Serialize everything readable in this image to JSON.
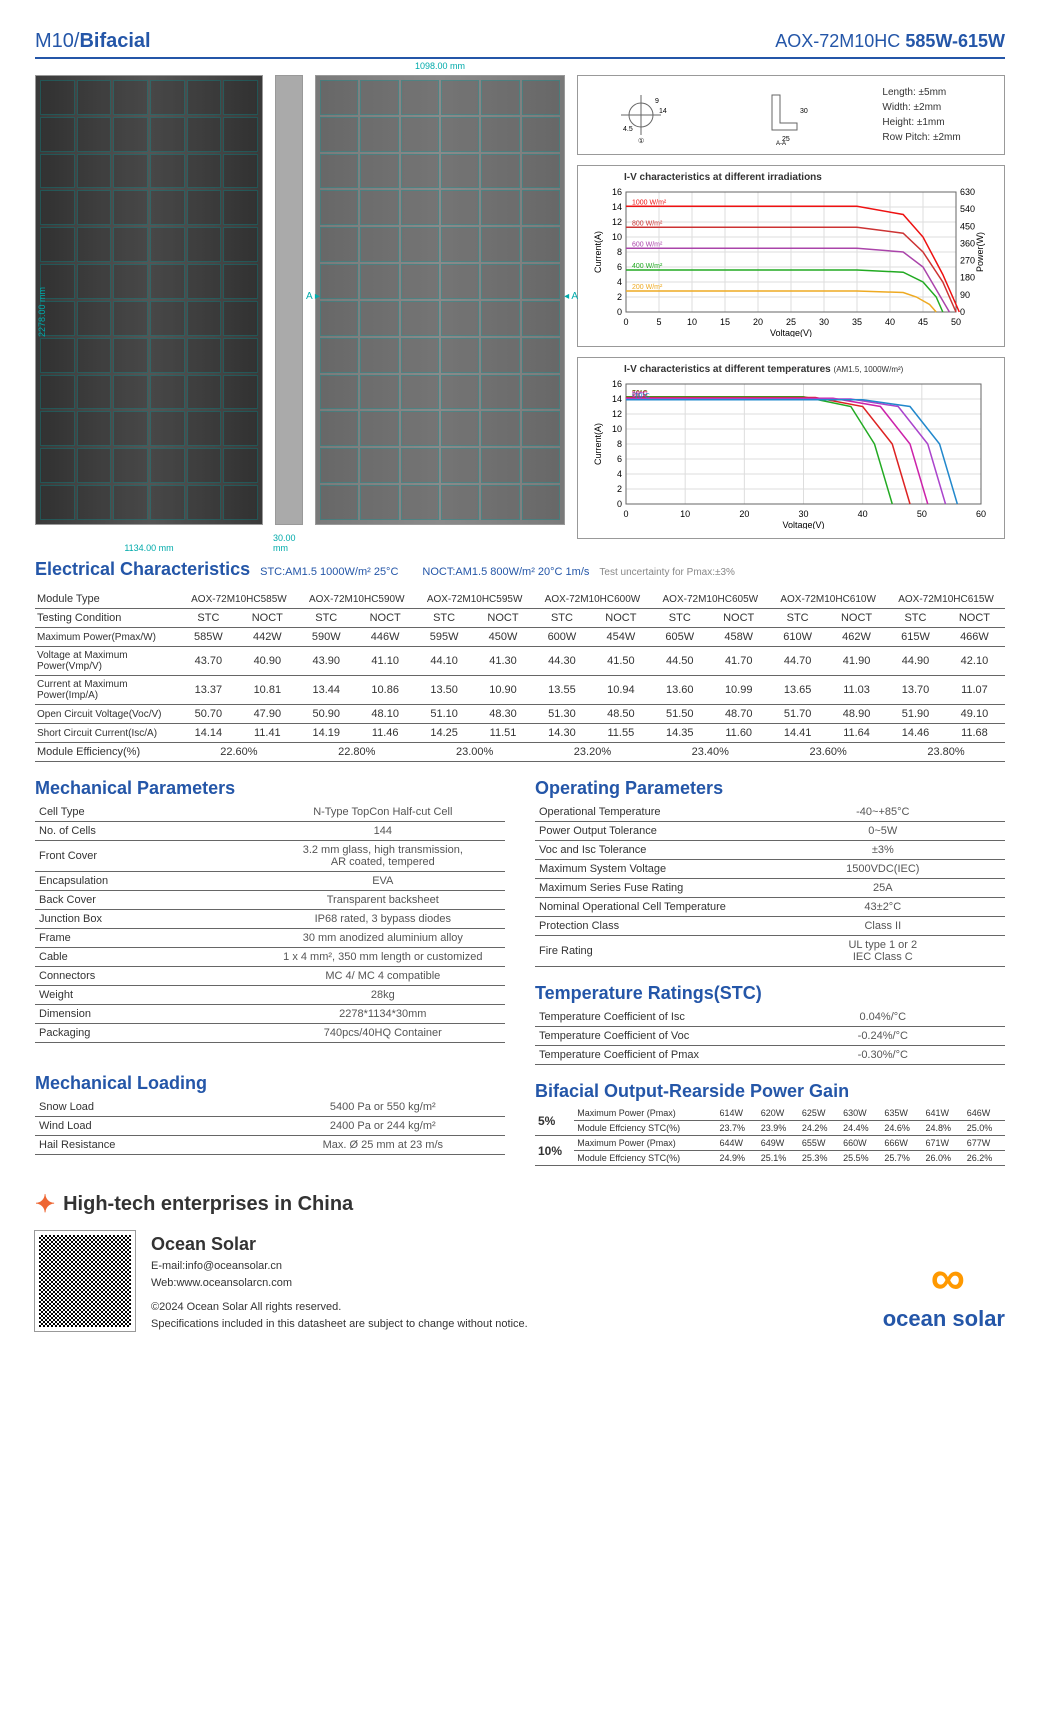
{
  "header": {
    "left_a": "M10/",
    "left_b": "Bifacial",
    "right_a": "AOX-72M10HC",
    "right_b": "585W-615W"
  },
  "panel_dims": {
    "width_front": "1134.00 mm",
    "height": "2278.00 mm",
    "side": "30.00 mm",
    "width_back": "1098.00 mm"
  },
  "dim_specs": {
    "length": "Length: ±5mm",
    "width": "Width: ±2mm",
    "ht": "Height: ±1mm",
    "row": "Row Pitch: ±2mm"
  },
  "chart1": {
    "title": "I-V characteristics at different irradiations",
    "xlabel": "Voltage(V)",
    "ylabel": "Current(A)",
    "y2label": "Power(W)",
    "xlim": [
      0,
      50
    ],
    "ylim": [
      0,
      16
    ],
    "y2lim": [
      0,
      630
    ],
    "xticks": [
      0,
      5,
      10,
      15,
      20,
      25,
      30,
      35,
      40,
      45,
      50
    ],
    "yticks": [
      0,
      2,
      4,
      6,
      8,
      10,
      12,
      14,
      16
    ],
    "y2ticks": [
      0,
      90,
      180,
      270,
      360,
      450,
      540,
      630
    ],
    "series": [
      {
        "label": "1000 W/m²",
        "color": "#e11",
        "iv": [
          [
            0,
            14.1
          ],
          [
            35,
            14.1
          ],
          [
            42,
            13
          ],
          [
            45,
            10
          ],
          [
            48,
            5
          ],
          [
            50.5,
            0
          ]
        ]
      },
      {
        "label": "800 W/m²",
        "color": "#c33",
        "iv": [
          [
            0,
            11.3
          ],
          [
            35,
            11.3
          ],
          [
            42,
            10.5
          ],
          [
            45,
            8
          ],
          [
            48,
            4
          ],
          [
            50,
            0
          ]
        ]
      },
      {
        "label": "600 W/m²",
        "color": "#a4a",
        "iv": [
          [
            0,
            8.5
          ],
          [
            35,
            8.5
          ],
          [
            42,
            8
          ],
          [
            45,
            6
          ],
          [
            47,
            3
          ],
          [
            49,
            0
          ]
        ]
      },
      {
        "label": "400 W/m²",
        "color": "#2a2",
        "iv": [
          [
            0,
            5.6
          ],
          [
            35,
            5.6
          ],
          [
            42,
            5.3
          ],
          [
            45,
            4
          ],
          [
            47,
            2
          ],
          [
            48,
            0
          ]
        ]
      },
      {
        "label": "200 W/m²",
        "color": "#ea2",
        "iv": [
          [
            0,
            2.8
          ],
          [
            35,
            2.8
          ],
          [
            42,
            2.6
          ],
          [
            44,
            2
          ],
          [
            46,
            1
          ],
          [
            47,
            0
          ]
        ]
      }
    ],
    "bg": "#fff",
    "grid": "#ddd",
    "font": 9
  },
  "chart2": {
    "title": "I-V characteristics at different temperatures",
    "sublabel": "(AM1.5, 1000W/m²)",
    "xlabel": "Voltage(V)",
    "ylabel": "Current(A)",
    "xlim": [
      0,
      60
    ],
    "ylim": [
      0,
      16
    ],
    "xticks": [
      0,
      10,
      20,
      30,
      40,
      50,
      60
    ],
    "yticks": [
      0,
      2,
      4,
      6,
      8,
      10,
      12,
      14,
      16
    ],
    "series": [
      {
        "label": "70°C",
        "color": "#2a2",
        "iv": [
          [
            0,
            14.3
          ],
          [
            30,
            14.3
          ],
          [
            38,
            13
          ],
          [
            42,
            8
          ],
          [
            45,
            0
          ]
        ]
      },
      {
        "label": "50°C",
        "color": "#d22",
        "iv": [
          [
            0,
            14.2
          ],
          [
            32,
            14.2
          ],
          [
            40,
            13
          ],
          [
            45,
            8
          ],
          [
            48,
            0
          ]
        ]
      },
      {
        "label": "25°C",
        "color": "#c2a",
        "iv": [
          [
            0,
            14.1
          ],
          [
            35,
            14.1
          ],
          [
            43,
            13
          ],
          [
            48,
            8
          ],
          [
            51,
            0
          ]
        ]
      },
      {
        "label": "0°C",
        "color": "#a4c",
        "iv": [
          [
            0,
            14.0
          ],
          [
            38,
            14.0
          ],
          [
            46,
            13
          ],
          [
            51,
            8
          ],
          [
            54,
            0
          ]
        ]
      },
      {
        "label": "-10°C",
        "color": "#28c",
        "iv": [
          [
            0,
            13.9
          ],
          [
            40,
            13.9
          ],
          [
            48,
            13
          ],
          [
            53,
            8
          ],
          [
            56,
            0
          ]
        ]
      }
    ],
    "bg": "#fff",
    "grid": "#ddd",
    "font": 9
  },
  "electrical": {
    "title": "Electrical Characteristics",
    "stc": "STC:AM1.5  1000W/m²  25°C",
    "noct": "NOCT:AM1.5  800W/m²  20°C  1m/s",
    "unc": "Test uncertainty for Pmax:±3%",
    "headers": [
      "AOX-72M10HC585W",
      "AOX-72M10HC590W",
      "AOX-72M10HC595W",
      "AOX-72M10HC600W",
      "AOX-72M10HC605W",
      "AOX-72M10HC610W",
      "AOX-72M10HC615W"
    ],
    "cond": [
      "STC",
      "NOCT"
    ],
    "rows": [
      {
        "l": "Module Type"
      },
      {
        "l": "Testing Condition"
      },
      {
        "l": "Maximum Power(Pmax/W)",
        "v": [
          [
            "585W",
            "442W"
          ],
          [
            "590W",
            "446W"
          ],
          [
            "595W",
            "450W"
          ],
          [
            "600W",
            "454W"
          ],
          [
            "605W",
            "458W"
          ],
          [
            "610W",
            "462W"
          ],
          [
            "615W",
            "466W"
          ]
        ]
      },
      {
        "l": "Voltage at Maximum Power(Vmp/V)",
        "v": [
          [
            "43.70",
            "40.90"
          ],
          [
            "43.90",
            "41.10"
          ],
          [
            "44.10",
            "41.30"
          ],
          [
            "44.30",
            "41.50"
          ],
          [
            "44.50",
            "41.70"
          ],
          [
            "44.70",
            "41.90"
          ],
          [
            "44.90",
            "42.10"
          ]
        ]
      },
      {
        "l": "Current at Maximum Power(Imp/A)",
        "v": [
          [
            "13.37",
            "10.81"
          ],
          [
            "13.44",
            "10.86"
          ],
          [
            "13.50",
            "10.90"
          ],
          [
            "13.55",
            "10.94"
          ],
          [
            "13.60",
            "10.99"
          ],
          [
            "13.65",
            "11.03"
          ],
          [
            "13.70",
            "11.07"
          ]
        ]
      },
      {
        "l": "Open Circuit Voltage(Voc/V)",
        "v": [
          [
            "50.70",
            "47.90"
          ],
          [
            "50.90",
            "48.10"
          ],
          [
            "51.10",
            "48.30"
          ],
          [
            "51.30",
            "48.50"
          ],
          [
            "51.50",
            "48.70"
          ],
          [
            "51.70",
            "48.90"
          ],
          [
            "51.90",
            "49.10"
          ]
        ]
      },
      {
        "l": "Short Circuit Current(Isc/A)",
        "v": [
          [
            "14.14",
            "11.41"
          ],
          [
            "14.19",
            "11.46"
          ],
          [
            "14.25",
            "11.51"
          ],
          [
            "14.30",
            "11.55"
          ],
          [
            "14.35",
            "11.60"
          ],
          [
            "14.41",
            "11.64"
          ],
          [
            "14.46",
            "11.68"
          ]
        ]
      },
      {
        "l": "Module Efficiency(%)",
        "eff": [
          "22.60%",
          "22.80%",
          "23.00%",
          "23.20%",
          "23.40%",
          "23.60%",
          "23.80%"
        ]
      }
    ]
  },
  "mechanical": {
    "title": "Mechanical Parameters",
    "rows": [
      [
        "Cell Type",
        "N-Type TopCon Half-cut Cell"
      ],
      [
        "No. of  Cells",
        "144"
      ],
      [
        "Front  Cover",
        "3.2 mm glass, high transmission,\nAR coated, tempered"
      ],
      [
        "Encapsulation",
        "EVA"
      ],
      [
        "Back Cover",
        "Transparent backsheet"
      ],
      [
        "Junction Box",
        "IP68 rated, 3 bypass diodes"
      ],
      [
        "Frame",
        "30 mm anodized aluminium alloy"
      ],
      [
        "Cable",
        "1 x 4 mm², 350 mm length or customized"
      ],
      [
        "Connectors",
        "MC 4/ MC 4 compatible"
      ],
      [
        "Weight",
        "28kg"
      ],
      [
        "Dimension",
        "2278*1134*30mm"
      ],
      [
        "Packaging",
        "740pcs/40HQ Container"
      ]
    ]
  },
  "loading": {
    "title": "Mechanical Loading",
    "rows": [
      [
        "Snow Load",
        "5400 Pa or 550 kg/m²"
      ],
      [
        "Wind Load",
        "2400 Pa or 244 kg/m²"
      ],
      [
        "Hail Resistance",
        "Max. Ø 25 mm at 23 m/s"
      ]
    ]
  },
  "operating": {
    "title": "Operating Parameters",
    "rows": [
      [
        "Operational Temperature",
        "-40~+85°C"
      ],
      [
        "Power Output Tolerance",
        "0~5W"
      ],
      [
        "Voc and Isc Tolerance",
        "±3%"
      ],
      [
        "Maximum System Voltage",
        "1500VDC(IEC)"
      ],
      [
        "Maximum Series Fuse Rating",
        "25A"
      ],
      [
        "Nominal Operational Cell Temperature",
        "43±2°C"
      ],
      [
        "Protection Class",
        "Class II"
      ],
      [
        "Fire Rating",
        "UL type 1 or 2\nIEC Class C"
      ]
    ]
  },
  "temp": {
    "title": "Temperature Ratings(STC)",
    "rows": [
      [
        "Temperature Coefficient of Isc",
        "0.04%/°C"
      ],
      [
        "Temperature Coefficient of Voc",
        "-0.24%/°C"
      ],
      [
        "Temperature Coefficient of Pmax",
        "-0.30%/°C"
      ]
    ]
  },
  "bifacial": {
    "title": "Bifacial Output-Rearside Power Gain",
    "cols": [
      "614W",
      "620W",
      "625W",
      "630W",
      "635W",
      "641W",
      "646W"
    ],
    "r1": {
      "pct": "5%",
      "l1": "Maximum Power (Pmax)",
      "l2": "Module Effciency STC(%)",
      "eff": [
        "23.7%",
        "23.9%",
        "24.2%",
        "24.4%",
        "24.6%",
        "24.8%",
        "25.0%"
      ]
    },
    "r2": {
      "pct": "10%",
      "l1": "Maximum Power (Pmax)",
      "l2": "Module Effciency STC(%)",
      "pw": [
        "644W",
        "649W",
        "655W",
        "660W",
        "666W",
        "671W",
        "677W"
      ],
      "eff": [
        "24.9%",
        "25.1%",
        "25.3%",
        "25.5%",
        "25.7%",
        "26.0%",
        "26.2%"
      ]
    }
  },
  "footer": {
    "tagline": "High-tech enterprises in China",
    "company": "Ocean Solar",
    "email": "E-mail:info@oceansolar.cn",
    "web": "Web:www.oceansolarcn.com",
    "copy": "©2024 Ocean Solar All rights reserved.",
    "disc": "Specifications included in this datasheet are subject to change without notice.",
    "logo": "ocean solar"
  }
}
